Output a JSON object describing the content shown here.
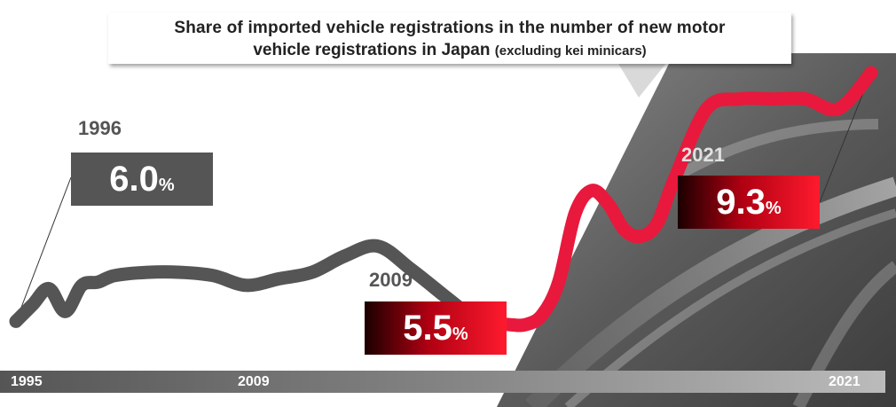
{
  "chart_data": {
    "type": "line",
    "title": "Share of imported vehicle registrations in the number of new motor vehicle registrations in Japan",
    "subtitle": "(excluding kei minicars)",
    "x": [
      1995.0,
      1995.5,
      1996.0,
      1996.5,
      1997.0,
      1997.5,
      1998.0,
      1999.0,
      2000.0,
      2001.0,
      2002.0,
      2003.0,
      2004.0,
      2005.0,
      2006.0,
      2007.0,
      2008.0,
      2008.5,
      2009.0,
      2010.0,
      2010.5,
      2011.0,
      2011.5,
      2012.0,
      2012.5,
      2013.0,
      2013.5,
      2014.0,
      2014.5,
      2015.0,
      2016.0,
      2017.0,
      2018.0,
      2019.0,
      2020.0,
      2021.0
    ],
    "y": [
      5.5,
      5.75,
      6.0,
      5.65,
      6.05,
      6.1,
      6.2,
      6.25,
      6.25,
      6.2,
      6.05,
      6.15,
      6.25,
      6.5,
      6.65,
      6.3,
      5.9,
      5.7,
      5.5,
      5.45,
      5.45,
      5.6,
      6.1,
      7.15,
      7.5,
      7.3,
      6.9,
      6.8,
      7.0,
      7.65,
      8.75,
      8.9,
      8.9,
      8.9,
      8.75,
      9.3
    ],
    "segments": [
      {
        "from": 1995,
        "to": 2009,
        "color": "#555555"
      },
      {
        "from": 2009,
        "to": 2021,
        "color": "#e8193c"
      }
    ],
    "ylim": [
      4.8,
      9.6
    ],
    "xlim": [
      1995,
      2021
    ],
    "x_ticks": [
      "1995",
      "2009",
      "2021"
    ],
    "grid": false,
    "callouts": [
      {
        "year": "1996",
        "value": "6.0",
        "unit": "%"
      },
      {
        "year": "2009",
        "value": "5.5",
        "unit": "%"
      },
      {
        "year": "2021",
        "value": "9.3",
        "unit": "%"
      }
    ]
  },
  "colors": {
    "gray_line": "#555555",
    "red_line": "#e8193c",
    "axis_bar": "#777777"
  }
}
